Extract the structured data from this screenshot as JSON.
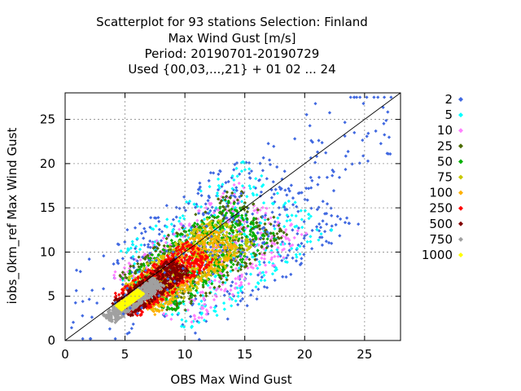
{
  "chart_data": {
    "type": "scatter",
    "title_lines": [
      "Scatterplot for   93 stations Selection: Finland",
      "Max Wind Gust [m/s]",
      "Period: 20190701-20190729",
      "Used {00,03,...,21} + 01 02 ... 24"
    ],
    "xlabel": "OBS Max Wind Gust",
    "ylabel": "iobs_0km_ref Max Wind Gust",
    "xlim": [
      0,
      28
    ],
    "ylim": [
      0,
      28
    ],
    "xticks": [
      0,
      5,
      10,
      15,
      20,
      25
    ],
    "yticks": [
      0,
      5,
      10,
      15,
      20,
      25
    ],
    "grid": true,
    "legend_position": "right",
    "reference_line": {
      "x": [
        0,
        28
      ],
      "y": [
        0,
        28
      ]
    },
    "legend": [
      {
        "label": "2",
        "color": "#4169e1"
      },
      {
        "label": "5",
        "color": "#00ffff"
      },
      {
        "label": "10",
        "color": "#ff80ff"
      },
      {
        "label": "25",
        "color": "#4b6b00"
      },
      {
        "label": "50",
        "color": "#00b000"
      },
      {
        "label": "75",
        "color": "#c8c800"
      },
      {
        "label": "100",
        "color": "#ffb000"
      },
      {
        "label": "250",
        "color": "#ff0000"
      },
      {
        "label": "500",
        "color": "#800000"
      },
      {
        "label": "750",
        "color": "#a0a0a0"
      },
      {
        "label": "1000",
        "color": "#ffff00"
      }
    ],
    "density_bands": [
      {
        "threshold": "2",
        "color": "#4169e1",
        "center": [
          12,
          11
        ],
        "spread": 9.5,
        "width": 6.5
      },
      {
        "threshold": "5",
        "color": "#00ffff",
        "center": [
          11.5,
          10.5
        ],
        "spread": 8.5,
        "width": 5.5
      },
      {
        "threshold": "10",
        "color": "#ff80ff",
        "center": [
          11,
          9.5
        ],
        "spread": 7.5,
        "width": 4.5
      },
      {
        "threshold": "25",
        "color": "#4b6b00",
        "center": [
          10.5,
          10
        ],
        "spread": 7.0,
        "width": 3.6
      },
      {
        "threshold": "50",
        "color": "#00b000",
        "center": [
          10,
          9.5
        ],
        "spread": 6.3,
        "width": 3.0
      },
      {
        "threshold": "75",
        "color": "#c8c800",
        "center": [
          9,
          8.5
        ],
        "spread": 5.7,
        "width": 2.5
      },
      {
        "threshold": "100",
        "color": "#ffb000",
        "center": [
          8.5,
          8
        ],
        "spread": 5.2,
        "width": 2.1
      },
      {
        "threshold": "250",
        "color": "#ff0000",
        "center": [
          7,
          7
        ],
        "spread": 4.5,
        "width": 1.7
      },
      {
        "threshold": "500",
        "color": "#800000",
        "center": [
          6,
          6
        ],
        "spread": 3.6,
        "width": 1.2
      },
      {
        "threshold": "750",
        "color": "#a0a0a0",
        "center": [
          4.5,
          4.5
        ],
        "spread": 3.0,
        "width": 0.7
      },
      {
        "threshold": "1000",
        "color": "#ffff00",
        "center": [
          4.2,
          4.6
        ],
        "spread": 1.3,
        "width": 0.35
      }
    ]
  }
}
